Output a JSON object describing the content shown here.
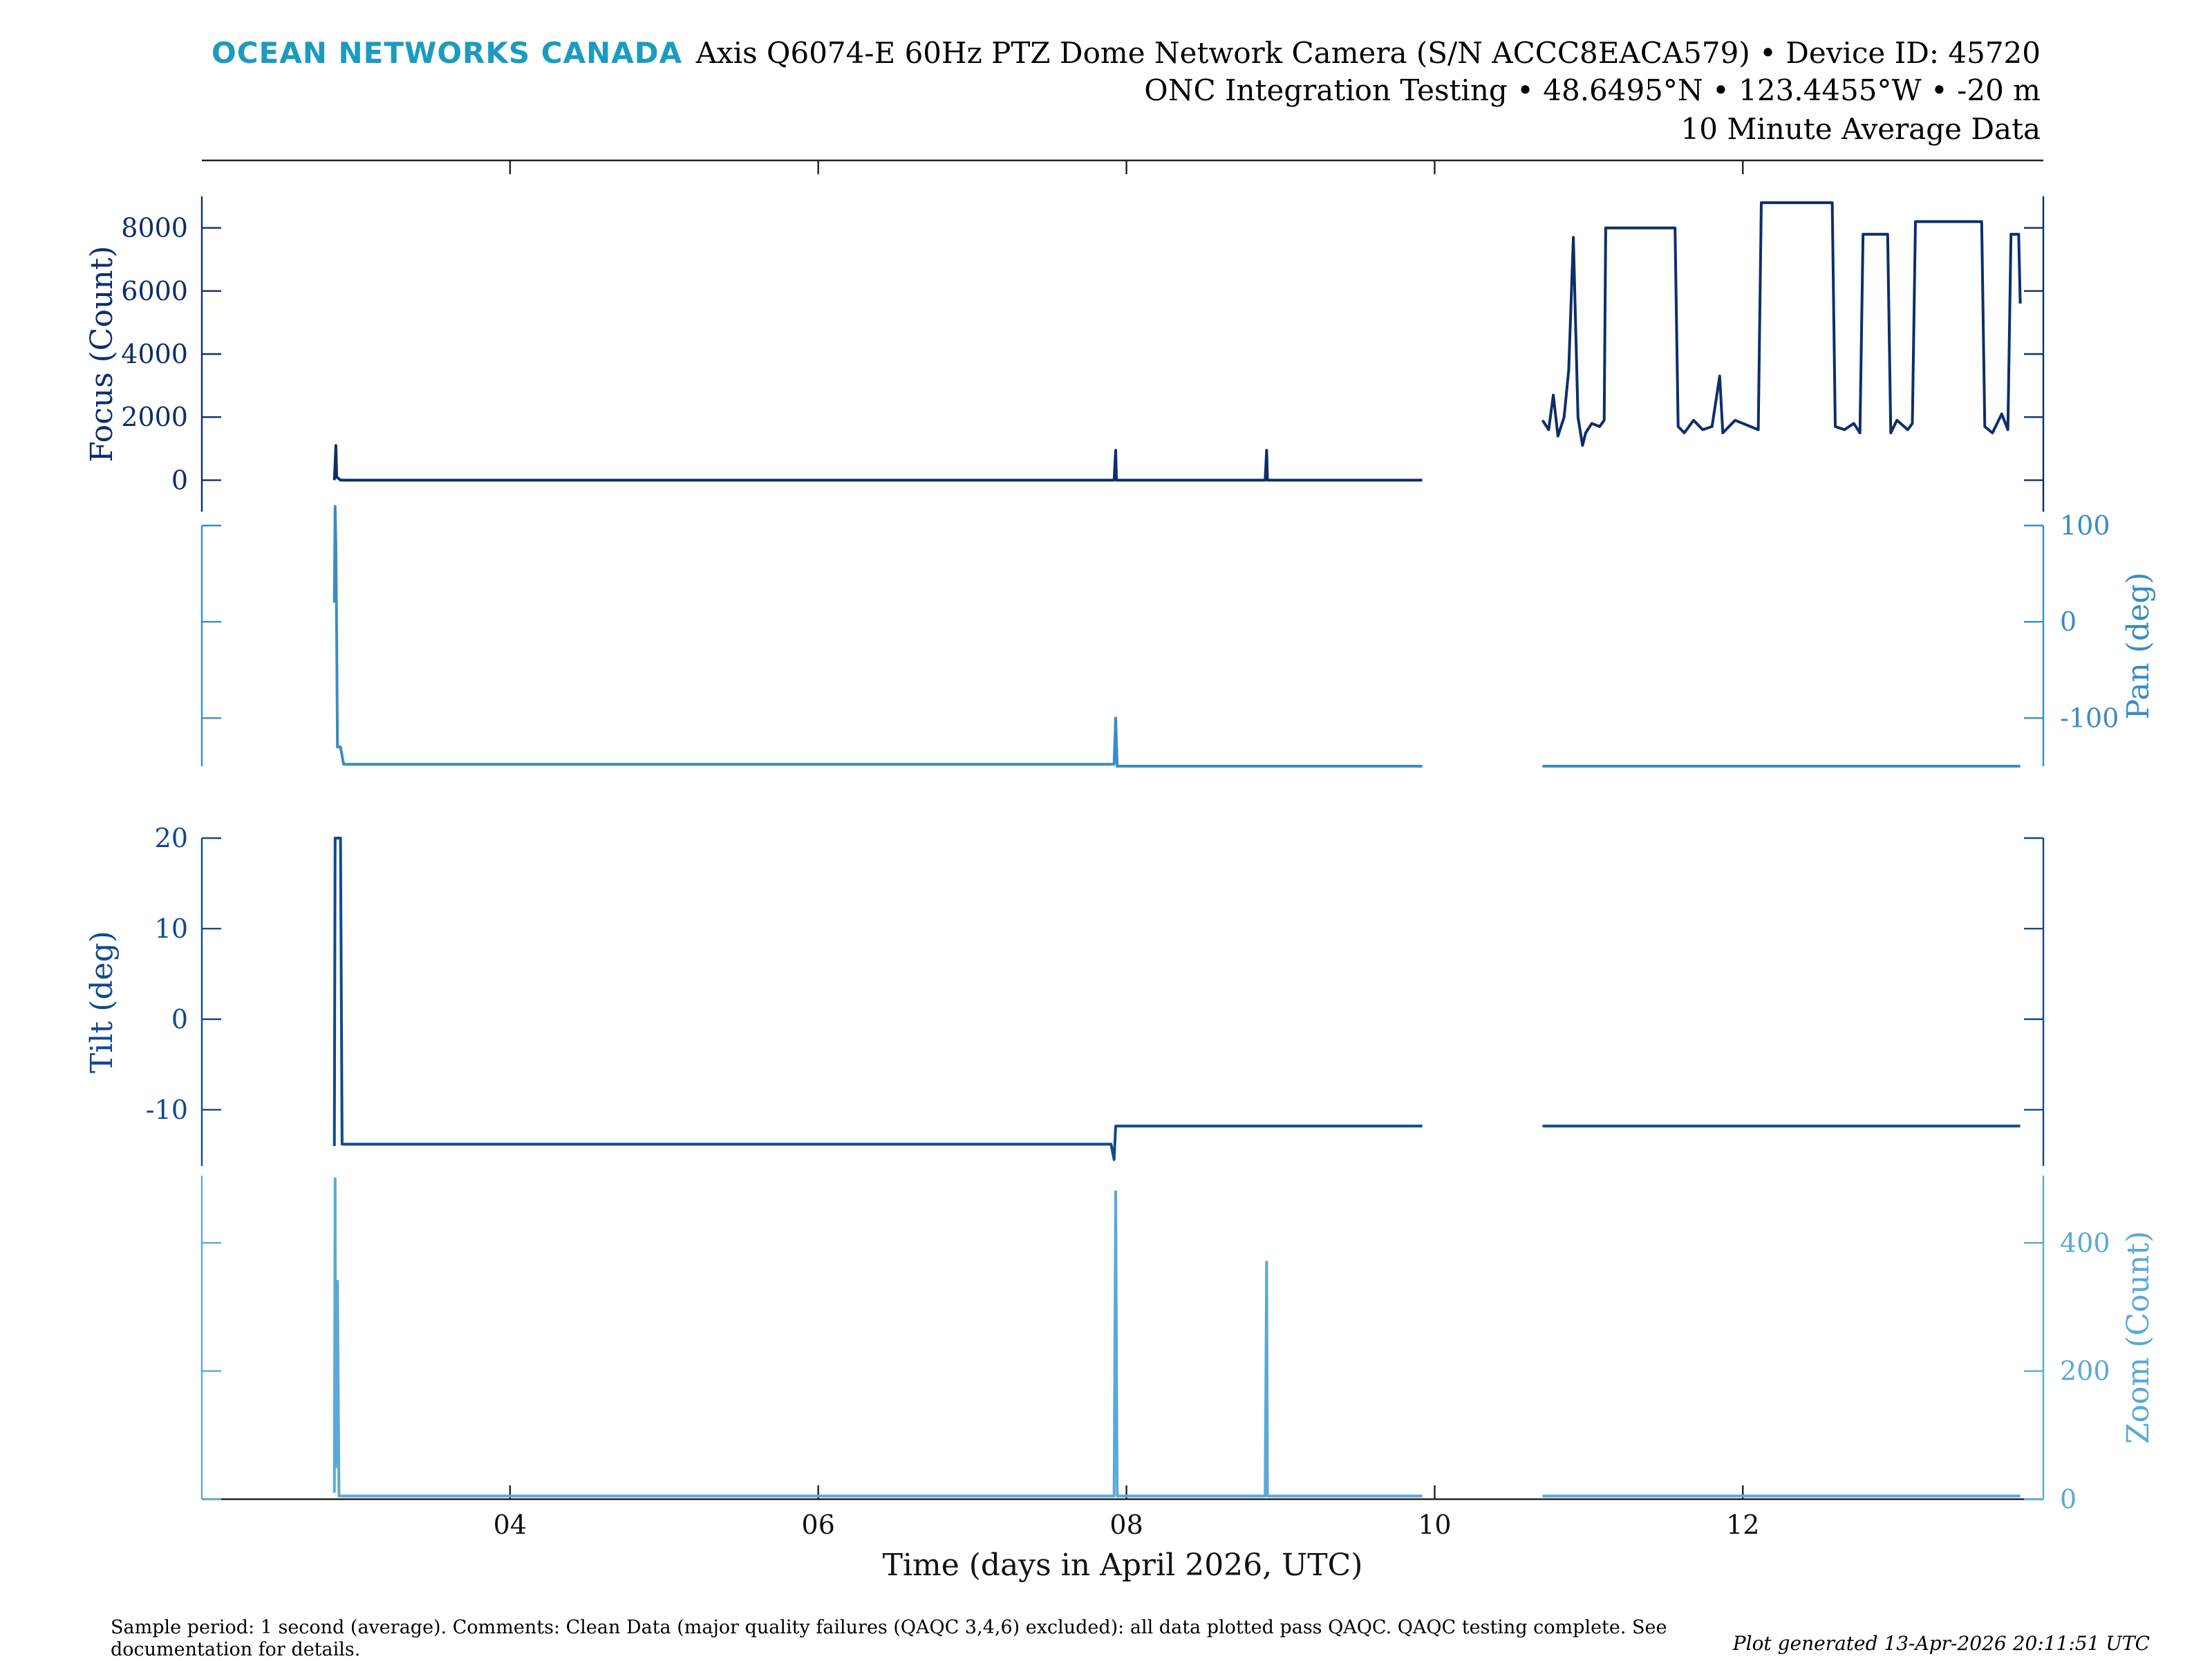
{
  "header": {
    "logo": "OCEAN NETWORKS CANADA",
    "line1": "Axis Q6074-E 60Hz PTZ Dome Network Camera (S/N ACCC8EACA579) • Device ID: 45720",
    "line2": "ONC Integration Testing • 48.6495°N • 123.4455°W • -20 m",
    "line3": "10 Minute Average Data"
  },
  "footer": {
    "comments": "Sample period: 1 second (average). Comments: Clean Data (major quality failures (QAQC 3,4,6) excluded): all data plotted pass QAQC. QAQC testing complete. See documentation for details.",
    "generated": "Plot generated 13-Apr-2026 20:11:51 UTC"
  },
  "colors": {
    "focus": "#0d2e6b",
    "pan": "#3a8cc4",
    "tilt": "#0f4a8a",
    "zoom": "#5aa9d6",
    "logo": "#1b9bc0"
  },
  "chart_data": {
    "type": "line",
    "xlabel": "Time (days in April 2026, UTC)",
    "xlim": [
      2.0,
      13.95
    ],
    "x_ticks": [
      4,
      6,
      8,
      10,
      12
    ],
    "x_tick_labels": [
      "04",
      "06",
      "08",
      "10",
      "12"
    ],
    "panels": [
      {
        "name": "Focus",
        "ylabel": "Focus (Count)",
        "y_axis_side": "left",
        "ylim": [
          -1000,
          9000
        ],
        "y_ticks": [
          0,
          2000,
          4000,
          6000,
          8000
        ],
        "points": [
          [
            2.86,
            0
          ],
          [
            2.87,
            1100
          ],
          [
            2.875,
            100
          ],
          [
            2.9,
            0
          ],
          [
            7.92,
            0
          ],
          [
            7.93,
            950
          ],
          [
            7.935,
            0
          ],
          [
            8.9,
            0
          ],
          [
            8.91,
            950
          ],
          [
            8.915,
            0
          ],
          [
            9.92,
            0
          ],
          null,
          [
            10.7,
            1900
          ],
          [
            10.74,
            1600
          ],
          [
            10.77,
            2700
          ],
          [
            10.8,
            1400
          ],
          [
            10.84,
            2000
          ],
          [
            10.87,
            3500
          ],
          [
            10.9,
            7700
          ],
          [
            10.93,
            2000
          ],
          [
            10.96,
            1100
          ],
          [
            10.98,
            1500
          ],
          [
            11.02,
            1800
          ],
          [
            11.07,
            1700
          ],
          [
            11.1,
            1900
          ],
          [
            11.11,
            8000
          ],
          [
            11.56,
            8000
          ],
          [
            11.58,
            1700
          ],
          [
            11.62,
            1500
          ],
          [
            11.68,
            1900
          ],
          [
            11.74,
            1600
          ],
          [
            11.8,
            1700
          ],
          [
            11.85,
            3300
          ],
          [
            11.87,
            1500
          ],
          [
            11.95,
            1900
          ],
          [
            12.1,
            1600
          ],
          [
            12.12,
            8800
          ],
          [
            12.58,
            8800
          ],
          [
            12.6,
            1700
          ],
          [
            12.66,
            1600
          ],
          [
            12.72,
            1800
          ],
          [
            12.76,
            1500
          ],
          [
            12.78,
            7800
          ],
          [
            12.94,
            7800
          ],
          [
            12.96,
            1500
          ],
          [
            13.0,
            1900
          ],
          [
            13.07,
            1600
          ],
          [
            13.1,
            1800
          ],
          [
            13.12,
            8200
          ],
          [
            13.55,
            8200
          ],
          [
            13.57,
            1700
          ],
          [
            13.62,
            1500
          ],
          [
            13.68,
            2100
          ],
          [
            13.72,
            1600
          ],
          [
            13.74,
            7800
          ],
          [
            13.79,
            7800
          ],
          [
            13.8,
            5600
          ]
        ]
      },
      {
        "name": "Pan",
        "ylabel": "Pan (deg)",
        "y_axis_side": "right",
        "ylim": [
          -150,
          100
        ],
        "y_ticks": [
          -100,
          0,
          100
        ],
        "points": [
          [
            2.86,
            20
          ],
          [
            2.865,
            120
          ],
          [
            2.87,
            80
          ],
          [
            2.875,
            -20
          ],
          [
            2.88,
            -130
          ],
          [
            2.9,
            -130
          ],
          [
            2.92,
            -148
          ],
          [
            7.92,
            -148
          ],
          [
            7.93,
            -100
          ],
          [
            7.94,
            -150
          ],
          [
            9.92,
            -150
          ],
          null,
          [
            10.7,
            -150
          ],
          [
            13.8,
            -150
          ]
        ]
      },
      {
        "name": "Tilt",
        "ylabel": "Tilt (deg)",
        "y_axis_side": "left",
        "ylim": [
          -16.2,
          20
        ],
        "y_ticks": [
          -10,
          0,
          10,
          20
        ],
        "points": [
          [
            2.86,
            -14
          ],
          [
            2.865,
            20
          ],
          [
            2.9,
            20
          ],
          [
            2.91,
            -13.8
          ],
          [
            7.9,
            -13.8
          ],
          [
            7.92,
            -15.5
          ],
          [
            7.93,
            -11.8
          ],
          [
            9.92,
            -11.8
          ],
          null,
          [
            10.7,
            -11.8
          ],
          [
            13.8,
            -11.8
          ]
        ]
      },
      {
        "name": "Zoom",
        "ylabel": "Zoom (Count)",
        "y_axis_side": "right",
        "ylim": [
          0,
          505
        ],
        "y_ticks": [
          0,
          200,
          400
        ],
        "points": [
          [
            2.86,
            10
          ],
          [
            2.865,
            500
          ],
          [
            2.87,
            50
          ],
          [
            2.88,
            340
          ],
          [
            2.89,
            5
          ],
          [
            7.92,
            5
          ],
          [
            7.93,
            480
          ],
          [
            7.94,
            5
          ],
          [
            8.9,
            5
          ],
          [
            8.91,
            370
          ],
          [
            8.915,
            5
          ],
          [
            9.92,
            5
          ],
          null,
          [
            10.7,
            5
          ],
          [
            13.8,
            5
          ]
        ]
      }
    ]
  }
}
